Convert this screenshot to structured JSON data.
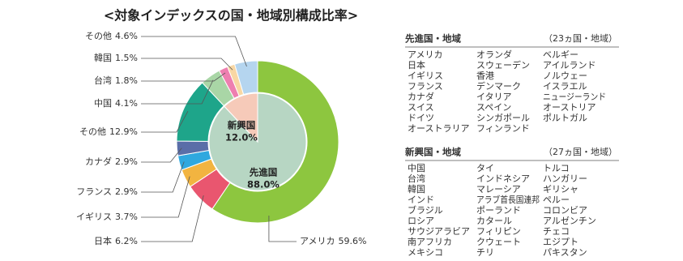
{
  "chart_data": {
    "type": "pie",
    "title": "<対象インデックスの国・地域別構成比率>",
    "outer": {
      "categories": [
        "アメリカ",
        "日本",
        "イギリス",
        "フランス",
        "カナダ",
        "その他",
        "中国",
        "台湾",
        "韓国",
        "その他"
      ],
      "values": [
        59.6,
        6.2,
        3.7,
        2.9,
        2.9,
        12.9,
        4.1,
        1.8,
        1.5,
        4.6
      ],
      "value_labels": [
        "59.6%",
        "6.2%",
        "3.7%",
        "2.9%",
        "2.9%",
        "12.9%",
        "4.1%",
        "1.8%",
        "1.5%",
        "4.6%"
      ],
      "colors": [
        "#8dc63f",
        "#e9566f",
        "#f2b440",
        "#2fa8df",
        "#5a6ea8",
        "#1ea58a",
        "#a9d6a6",
        "#ee7fb0",
        "#f8d7a4",
        "#b5d5ef"
      ]
    },
    "inner": {
      "categories": [
        "先進国",
        "新興国"
      ],
      "values": [
        88.0,
        12.0
      ],
      "value_labels": [
        "88.0%",
        "12.0%"
      ],
      "colors": [
        "#b7d6c3",
        "#f6cab9"
      ]
    }
  },
  "lists": [
    {
      "heading": "先進国・地域",
      "count": "（23ヵ国・地域）",
      "columns": [
        [
          "アメリカ",
          "日本",
          "イギリス",
          "フランス",
          "カナダ",
          "スイス",
          "ドイツ",
          "オーストラリア"
        ],
        [
          "オランダ",
          "スウェーデン",
          "香港",
          "デンマーク",
          "イタリア",
          "スペイン",
          "シンガポール",
          "フィンランド"
        ],
        [
          "ベルギー",
          "アイルランド",
          "ノルウェー",
          "イスラエル",
          "ニュージーランド",
          "オーストリア",
          "ポルトガル"
        ]
      ]
    },
    {
      "heading": "新興国・地域",
      "count": "（27ヵ国・地域）",
      "columns": [
        [
          "中国",
          "台湾",
          "韓国",
          "インド",
          "ブラジル",
          "ロシア",
          "サウジアラビア",
          "南アフリカ",
          "メキシコ"
        ],
        [
          "タイ",
          "インドネシア",
          "マレーシア",
          "アラブ首長国連邦",
          "ポーランド",
          "カタール",
          "フィリピン",
          "クウェート",
          "チリ"
        ],
        [
          "トルコ",
          "ハンガリー",
          "ギリシャ",
          "ペルー",
          "コロンビア",
          "アルゼンチン",
          "チェコ",
          "エジプト",
          "パキスタン"
        ]
      ]
    }
  ]
}
